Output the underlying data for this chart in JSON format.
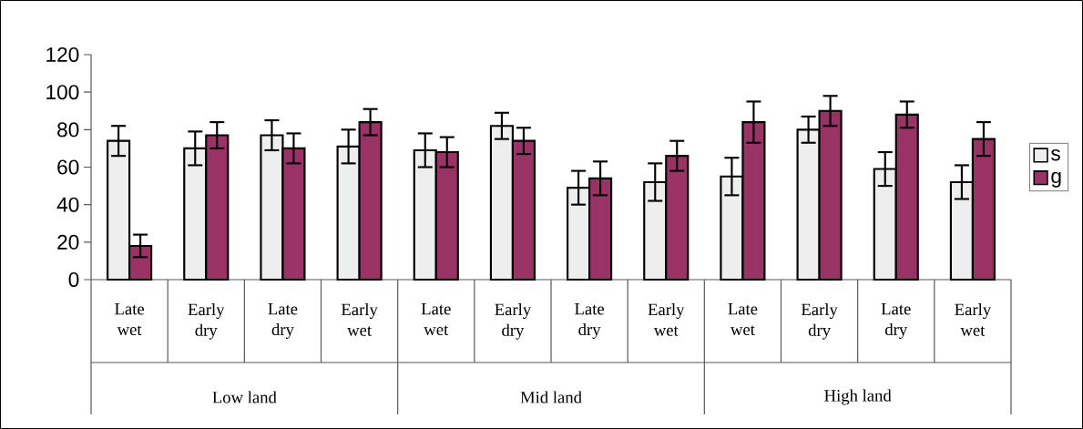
{
  "chart_data": {
    "type": "bar",
    "categories": [
      "Late wet",
      "Early dry",
      "Late dry",
      "Early wet",
      "Late wet",
      "Early dry",
      "Late dry",
      "Early wet",
      "Late wet",
      "Early dry",
      "Late dry",
      "Early wet"
    ],
    "series": [
      {
        "name": "s",
        "color": "#eeeeee",
        "values": [
          74,
          70,
          77,
          71,
          69,
          82,
          49,
          52,
          55,
          80,
          59,
          52
        ],
        "errors": [
          8,
          9,
          8,
          9,
          9,
          7,
          9,
          10,
          10,
          7,
          9,
          9
        ]
      },
      {
        "name": "g",
        "color": "#993366",
        "values": [
          18,
          77,
          70,
          84,
          68,
          74,
          54,
          66,
          84,
          90,
          88,
          75
        ],
        "errors": [
          6,
          7,
          8,
          7,
          8,
          7,
          9,
          8,
          11,
          8,
          7,
          9
        ]
      }
    ],
    "ylim": [
      0,
      120
    ],
    "yticks": [
      0,
      20,
      40,
      60,
      80,
      100,
      120
    ],
    "legend": "right",
    "annotations": [
      "Low land",
      "Mid land",
      "High land"
    ]
  }
}
